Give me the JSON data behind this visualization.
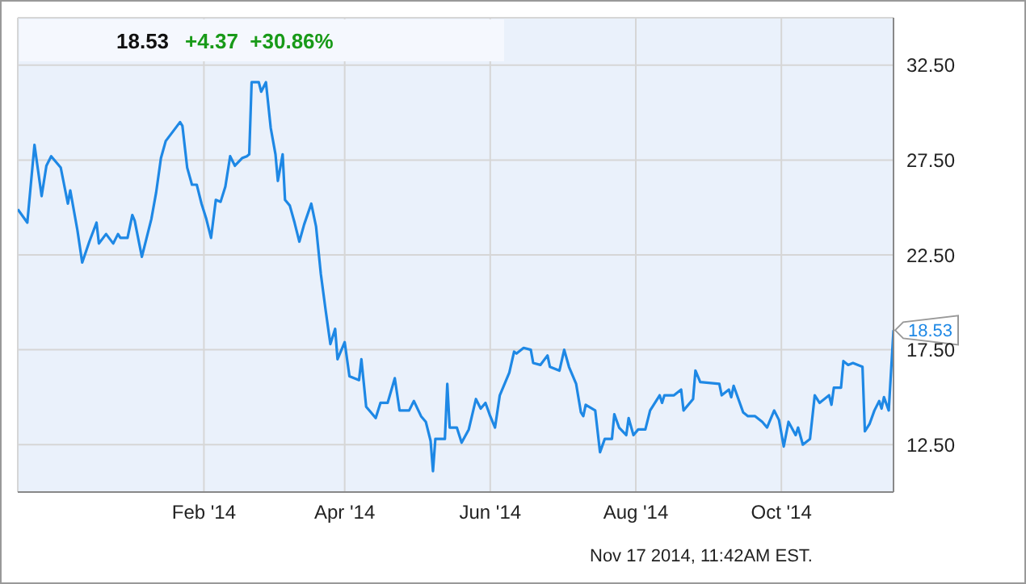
{
  "chart_data": {
    "type": "line",
    "title": "18.53",
    "subtitle": "+4.37  +30.86%",
    "grid": true,
    "marker": "none",
    "line_style": "solid",
    "xlim": [
      "2013-11-15",
      "2014-11-17"
    ],
    "xticks": [
      {
        "value": "2014-02-01",
        "label": "Feb '14"
      },
      {
        "value": "2014-04-01",
        "label": "Apr '14"
      },
      {
        "value": "2014-06-01",
        "label": "Jun '14"
      },
      {
        "value": "2014-08-01",
        "label": "Aug '14"
      },
      {
        "value": "2014-10-01",
        "label": "Oct '14"
      }
    ],
    "ylim": [
      10,
      35
    ],
    "yticks": [
      {
        "value": 12.5,
        "label": "12.50"
      },
      {
        "value": 17.5,
        "label": "17.50"
      },
      {
        "value": 22.5,
        "label": "22.50"
      },
      {
        "value": 27.5,
        "label": "27.50"
      },
      {
        "value": 32.5,
        "label": "32.50"
      }
    ],
    "annotations": [
      {
        "text": "18.53",
        "x": "2014-11-17",
        "y": 18.53
      },
      "Nov 17 2014, 11:42AM EST."
    ],
    "x": [
      "2013-11-15",
      "2013-11-19",
      "2013-11-22",
      "2013-11-25",
      "2013-11-27",
      "2013-11-29",
      "2013-12-03",
      "2013-12-06",
      "2013-12-07",
      "2013-12-10",
      "2013-12-12",
      "2013-12-15",
      "2013-12-18",
      "2013-12-19",
      "2013-12-22",
      "2013-12-25",
      "2013-12-27",
      "2013-12-28",
      "2013-12-31",
      "2014-01-02",
      "2014-01-03",
      "2014-01-06",
      "2014-01-08",
      "2014-01-10",
      "2014-01-12",
      "2014-01-14",
      "2014-01-16",
      "2014-01-19",
      "2014-01-22",
      "2014-01-23",
      "2014-01-25",
      "2014-01-27",
      "2014-01-29",
      "2014-01-31",
      "2014-02-02",
      "2014-02-04",
      "2014-02-06",
      "2014-02-08",
      "2014-02-10",
      "2014-02-12",
      "2014-02-14",
      "2014-02-17",
      "2014-02-19",
      "2014-02-20",
      "2014-02-21",
      "2014-02-24",
      "2014-02-25",
      "2014-02-27",
      "2014-03-01",
      "2014-03-03",
      "2014-03-04",
      "2014-03-06",
      "2014-03-07",
      "2014-03-09",
      "2014-03-11",
      "2014-03-13",
      "2014-03-15",
      "2014-03-18",
      "2014-03-20",
      "2014-03-22",
      "2014-03-24",
      "2014-03-26",
      "2014-03-28",
      "2014-03-29",
      "2014-04-01",
      "2014-04-03",
      "2014-04-07",
      "2014-04-08",
      "2014-04-10",
      "2014-04-14",
      "2014-04-16",
      "2014-04-19",
      "2014-04-22",
      "2014-04-24",
      "2014-04-28",
      "2014-04-30",
      "2014-05-03",
      "2014-05-05",
      "2014-05-07",
      "2014-05-08",
      "2014-05-09",
      "2014-05-13",
      "2014-05-14",
      "2014-05-15",
      "2014-05-18",
      "2014-05-20",
      "2014-05-23",
      "2014-05-26",
      "2014-05-28",
      "2014-05-30",
      "2014-06-01",
      "2014-06-03",
      "2014-06-05",
      "2014-06-09",
      "2014-06-11",
      "2014-06-12",
      "2014-06-15",
      "2014-06-18",
      "2014-06-19",
      "2014-06-22",
      "2014-06-25",
      "2014-06-26",
      "2014-06-30",
      "2014-07-02",
      "2014-07-04",
      "2014-07-07",
      "2014-07-09",
      "2014-07-10",
      "2014-07-11",
      "2014-07-15",
      "2014-07-16",
      "2014-07-17",
      "2014-07-19",
      "2014-07-22",
      "2014-07-23",
      "2014-07-25",
      "2014-07-28",
      "2014-07-29",
      "2014-07-31",
      "2014-08-02",
      "2014-08-05",
      "2014-08-07",
      "2014-08-11",
      "2014-08-12",
      "2014-08-13",
      "2014-08-17",
      "2014-08-20",
      "2014-08-21",
      "2014-08-25",
      "2014-08-26",
      "2014-08-28",
      "2014-09-05",
      "2014-09-06",
      "2014-09-09",
      "2014-09-10",
      "2014-09-11",
      "2014-09-15",
      "2014-09-17",
      "2014-09-20",
      "2014-09-23",
      "2014-09-25",
      "2014-09-26",
      "2014-09-28",
      "2014-09-30",
      "2014-10-02",
      "2014-10-04",
      "2014-10-07",
      "2014-10-08",
      "2014-10-10",
      "2014-10-13",
      "2014-10-15",
      "2014-10-17",
      "2014-10-21",
      "2014-10-22",
      "2014-10-23",
      "2014-10-26",
      "2014-10-27",
      "2014-10-29",
      "2014-10-31",
      "2014-11-04",
      "2014-11-05",
      "2014-11-07",
      "2014-11-09",
      "2014-11-11",
      "2014-11-12",
      "2014-11-13",
      "2014-11-15",
      "2014-11-17"
    ],
    "series": [
      {
        "color": "#1e88e5",
        "values": [
          24.9,
          24.2,
          28.3,
          25.6,
          27.2,
          27.7,
          27.1,
          25.2,
          25.9,
          23.8,
          22.1,
          23.2,
          24.2,
          23.1,
          23.6,
          23.1,
          23.6,
          23.4,
          23.4,
          24.6,
          24.3,
          22.4,
          23.4,
          24.4,
          25.8,
          27.6,
          28.5,
          29.0,
          29.5,
          29.3,
          27.1,
          26.2,
          26.2,
          25.2,
          24.4,
          23.4,
          25.4,
          25.3,
          26.1,
          27.7,
          27.2,
          27.6,
          27.7,
          27.8,
          31.6,
          31.6,
          31.1,
          31.6,
          29.2,
          27.8,
          26.4,
          27.8,
          25.4,
          25.1,
          24.2,
          23.2,
          24.1,
          25.2,
          24.0,
          21.5,
          19.6,
          17.8,
          18.6,
          17.0,
          17.9,
          16.1,
          15.9,
          17.0,
          14.5,
          13.9,
          14.7,
          14.7,
          16.0,
          14.3,
          14.3,
          14.8,
          14.0,
          13.7,
          12.7,
          11.1,
          12.8,
          12.8,
          15.7,
          13.4,
          13.4,
          12.6,
          13.3,
          14.9,
          14.4,
          14.7,
          14.0,
          13.4,
          15.1,
          16.3,
          17.4,
          17.3,
          17.6,
          17.5,
          16.8,
          16.7,
          17.2,
          16.6,
          16.4,
          17.5,
          16.6,
          15.7,
          14.2,
          14.0,
          14.6,
          14.3,
          13.2,
          12.1,
          12.8,
          12.8,
          14.1,
          13.4,
          13.0,
          13.9,
          13.0,
          13.3,
          13.3,
          14.3,
          15.1,
          14.7,
          15.1,
          15.1,
          15.4,
          14.3,
          14.9,
          16.4,
          15.8,
          15.7,
          15.1,
          15.4,
          15.0,
          15.6,
          14.2,
          14.0,
          14.0,
          13.7,
          13.4,
          13.7,
          14.3,
          13.8,
          12.4,
          13.7,
          13.0,
          13.4,
          12.5,
          12.8,
          15.1,
          14.7,
          15.1,
          14.6,
          15.5,
          15.5,
          16.9,
          16.7,
          16.8,
          16.6,
          13.2,
          13.6,
          14.3,
          14.8,
          14.4,
          15.0,
          14.3,
          18.53
        ]
      }
    ]
  }
}
